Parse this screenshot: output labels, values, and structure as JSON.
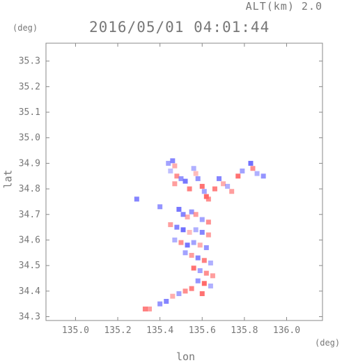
{
  "header": {
    "alt_label": "ALT(km) 2.0",
    "timestamp": "2016/05/01 04:01:44",
    "unit_left": "(deg)",
    "unit_right": "(deg)"
  },
  "chart_data": {
    "type": "heatmap",
    "title": "2016/05/01 04:01:44",
    "xlabel": "lon",
    "ylabel": "lat",
    "xlim": [
      134.86,
      136.17
    ],
    "ylim": [
      34.285,
      35.37
    ],
    "xticks": [
      "135.0",
      "135.2",
      "135.4",
      "135.6",
      "135.8",
      "136.0"
    ],
    "yticks": [
      "35.3",
      "35.2",
      "35.1",
      "35.0",
      "34.9",
      "34.8",
      "34.7",
      "34.6",
      "34.5",
      "34.4",
      "34.3"
    ],
    "grid": false,
    "colors": {
      "positive": "#ff6a6a",
      "negative": "#7070ff",
      "neutral": "#e6e6f4",
      "axis": "#888888"
    },
    "cells": [
      {
        "lon": 135.44,
        "lat": 34.9,
        "v": -0.4
      },
      {
        "lon": 135.46,
        "lat": 34.91,
        "v": -0.6
      },
      {
        "lon": 135.47,
        "lat": 34.89,
        "v": 0.3
      },
      {
        "lon": 135.45,
        "lat": 34.87,
        "v": -0.2
      },
      {
        "lon": 135.48,
        "lat": 34.85,
        "v": 0.5
      },
      {
        "lon": 135.5,
        "lat": 34.84,
        "v": -0.5
      },
      {
        "lon": 135.52,
        "lat": 34.83,
        "v": -0.7
      },
      {
        "lon": 135.47,
        "lat": 34.82,
        "v": 0.4
      },
      {
        "lon": 135.54,
        "lat": 34.8,
        "v": 0.6
      },
      {
        "lon": 135.56,
        "lat": 34.88,
        "v": -0.3
      },
      {
        "lon": 135.57,
        "lat": 34.86,
        "v": 0.2
      },
      {
        "lon": 135.58,
        "lat": 34.84,
        "v": -0.5
      },
      {
        "lon": 135.6,
        "lat": 34.81,
        "v": 0.7
      },
      {
        "lon": 135.61,
        "lat": 34.79,
        "v": -0.4
      },
      {
        "lon": 135.62,
        "lat": 34.77,
        "v": 0.8
      },
      {
        "lon": 135.63,
        "lat": 34.76,
        "v": 0.5
      },
      {
        "lon": 135.66,
        "lat": 34.8,
        "v": 0.6
      },
      {
        "lon": 135.68,
        "lat": 34.84,
        "v": -0.6
      },
      {
        "lon": 135.7,
        "lat": 34.82,
        "v": 0.3
      },
      {
        "lon": 135.72,
        "lat": 34.81,
        "v": -0.3
      },
      {
        "lon": 135.74,
        "lat": 34.79,
        "v": 0.4
      },
      {
        "lon": 135.77,
        "lat": 34.85,
        "v": 0.7
      },
      {
        "lon": 135.79,
        "lat": 34.87,
        "v": -0.4
      },
      {
        "lon": 135.83,
        "lat": 34.9,
        "v": -0.8
      },
      {
        "lon": 135.84,
        "lat": 34.88,
        "v": 0.5
      },
      {
        "lon": 135.86,
        "lat": 34.86,
        "v": -0.3
      },
      {
        "lon": 135.89,
        "lat": 34.85,
        "v": -0.5
      },
      {
        "lon": 135.29,
        "lat": 34.76,
        "v": -0.6
      },
      {
        "lon": 135.4,
        "lat": 34.73,
        "v": -0.5
      },
      {
        "lon": 135.49,
        "lat": 34.72,
        "v": -0.7
      },
      {
        "lon": 135.51,
        "lat": 34.7,
        "v": -0.6
      },
      {
        "lon": 135.53,
        "lat": 34.69,
        "v": 0.3
      },
      {
        "lon": 135.55,
        "lat": 34.71,
        "v": -0.5
      },
      {
        "lon": 135.57,
        "lat": 34.7,
        "v": 0.4
      },
      {
        "lon": 135.6,
        "lat": 34.68,
        "v": -0.4
      },
      {
        "lon": 135.63,
        "lat": 34.67,
        "v": 0.5
      },
      {
        "lon": 135.45,
        "lat": 34.66,
        "v": 0.4
      },
      {
        "lon": 135.48,
        "lat": 34.65,
        "v": -0.6
      },
      {
        "lon": 135.51,
        "lat": 34.64,
        "v": -0.8
      },
      {
        "lon": 135.54,
        "lat": 34.63,
        "v": 0.2
      },
      {
        "lon": 135.57,
        "lat": 34.64,
        "v": -0.3
      },
      {
        "lon": 135.6,
        "lat": 34.63,
        "v": -0.6
      },
      {
        "lon": 135.63,
        "lat": 34.62,
        "v": 0.4
      },
      {
        "lon": 135.47,
        "lat": 34.6,
        "v": -0.3
      },
      {
        "lon": 135.5,
        "lat": 34.59,
        "v": 0.5
      },
      {
        "lon": 135.53,
        "lat": 34.58,
        "v": -0.7
      },
      {
        "lon": 135.56,
        "lat": 34.59,
        "v": -0.4
      },
      {
        "lon": 135.59,
        "lat": 34.58,
        "v": 0.3
      },
      {
        "lon": 135.62,
        "lat": 34.57,
        "v": -0.5
      },
      {
        "lon": 135.52,
        "lat": 34.55,
        "v": -0.4
      },
      {
        "lon": 135.55,
        "lat": 34.54,
        "v": 0.4
      },
      {
        "lon": 135.58,
        "lat": 34.53,
        "v": -0.6
      },
      {
        "lon": 135.61,
        "lat": 34.52,
        "v": 0.6
      },
      {
        "lon": 135.64,
        "lat": 34.51,
        "v": -0.3
      },
      {
        "lon": 135.56,
        "lat": 34.49,
        "v": 0.7
      },
      {
        "lon": 135.59,
        "lat": 34.48,
        "v": -0.4
      },
      {
        "lon": 135.62,
        "lat": 34.47,
        "v": 0.5
      },
      {
        "lon": 135.65,
        "lat": 34.46,
        "v": 0.4
      },
      {
        "lon": 135.58,
        "lat": 34.44,
        "v": -0.5
      },
      {
        "lon": 135.61,
        "lat": 34.43,
        "v": 0.8
      },
      {
        "lon": 135.64,
        "lat": 34.42,
        "v": -0.3
      },
      {
        "lon": 135.55,
        "lat": 34.41,
        "v": 0.6
      },
      {
        "lon": 135.52,
        "lat": 34.4,
        "v": 0.5
      },
      {
        "lon": 135.49,
        "lat": 34.39,
        "v": -0.4
      },
      {
        "lon": 135.46,
        "lat": 34.38,
        "v": 0.3
      },
      {
        "lon": 135.43,
        "lat": 34.36,
        "v": -0.6
      },
      {
        "lon": 135.4,
        "lat": 34.35,
        "v": -0.5
      },
      {
        "lon": 135.6,
        "lat": 34.39,
        "v": 0.7
      },
      {
        "lon": 135.33,
        "lat": 34.33,
        "v": 0.6
      },
      {
        "lon": 135.35,
        "lat": 34.33,
        "v": 0.4
      }
    ]
  }
}
